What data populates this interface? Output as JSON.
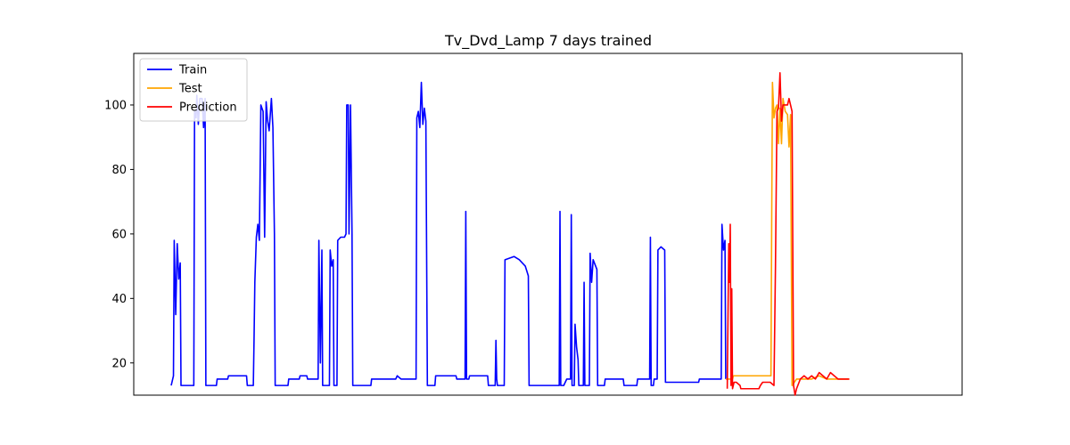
{
  "chart_data": {
    "type": "line",
    "title": "Tv_Dvd_Lamp 7 days trained",
    "xlabel": "",
    "ylabel": "",
    "xlim": [
      0,
      1000
    ],
    "ylim": [
      10,
      116
    ],
    "yticks": [
      20,
      40,
      60,
      80,
      100
    ],
    "grid": false,
    "legend_position": "top-left",
    "series": [
      {
        "name": "Train",
        "color": "#0000ff",
        "points": [
          [
            0,
            13
          ],
          [
            3,
            16
          ],
          [
            4,
            58
          ],
          [
            6,
            35
          ],
          [
            8,
            57
          ],
          [
            10,
            46
          ],
          [
            12,
            51
          ],
          [
            13,
            13
          ],
          [
            30,
            13
          ],
          [
            31,
            98
          ],
          [
            33,
            96
          ],
          [
            34,
            103
          ],
          [
            36,
            94
          ],
          [
            38,
            102
          ],
          [
            41,
            102
          ],
          [
            43,
            93
          ],
          [
            45,
            102
          ],
          [
            46,
            13
          ],
          [
            60,
            13
          ],
          [
            61,
            15
          ],
          [
            75,
            15
          ],
          [
            76,
            16
          ],
          [
            100,
            16
          ],
          [
            101,
            13
          ],
          [
            109,
            13
          ],
          [
            110,
            28
          ],
          [
            111,
            45
          ],
          [
            113,
            59
          ],
          [
            115,
            63
          ],
          [
            117,
            58
          ],
          [
            119,
            100
          ],
          [
            122,
            98
          ],
          [
            124,
            59
          ],
          [
            126,
            101
          ],
          [
            128,
            95
          ],
          [
            130,
            92
          ],
          [
            133,
            102
          ],
          [
            135,
            93
          ],
          [
            137,
            60
          ],
          [
            138,
            13
          ],
          [
            155,
            13
          ],
          [
            156,
            15
          ],
          [
            170,
            15
          ],
          [
            171,
            16
          ],
          [
            180,
            16
          ],
          [
            181,
            15
          ],
          [
            195,
            15
          ],
          [
            196,
            58
          ],
          [
            198,
            20
          ],
          [
            200,
            55
          ],
          [
            201,
            13
          ],
          [
            210,
            13
          ],
          [
            211,
            55
          ],
          [
            213,
            50
          ],
          [
            215,
            52
          ],
          [
            216,
            13
          ],
          [
            220,
            13
          ],
          [
            221,
            58
          ],
          [
            225,
            59
          ],
          [
            230,
            59
          ],
          [
            232,
            60
          ],
          [
            233,
            100
          ],
          [
            235,
            100
          ],
          [
            236,
            60
          ],
          [
            238,
            100
          ],
          [
            240,
            60
          ],
          [
            241,
            13
          ],
          [
            265,
            13
          ],
          [
            266,
            15
          ],
          [
            298,
            15
          ],
          [
            300,
            16
          ],
          [
            305,
            15
          ],
          [
            325,
            15
          ],
          [
            326,
            96
          ],
          [
            328,
            98
          ],
          [
            330,
            93
          ],
          [
            332,
            107
          ],
          [
            334,
            94
          ],
          [
            336,
            99
          ],
          [
            338,
            95
          ],
          [
            340,
            13
          ],
          [
            350,
            13
          ],
          [
            351,
            16
          ],
          [
            378,
            16
          ],
          [
            379,
            15
          ],
          [
            390,
            15
          ],
          [
            391,
            67
          ],
          [
            392,
            15
          ],
          [
            395,
            15
          ],
          [
            396,
            16
          ],
          [
            420,
            16
          ],
          [
            421,
            13
          ],
          [
            430,
            13
          ],
          [
            431,
            27
          ],
          [
            432,
            15
          ],
          [
            433,
            13
          ],
          [
            442,
            13
          ],
          [
            443,
            52
          ],
          [
            455,
            53
          ],
          [
            462,
            52
          ],
          [
            470,
            50
          ],
          [
            474,
            47
          ],
          [
            475,
            13
          ],
          [
            500,
            13
          ],
          [
            510,
            13
          ],
          [
            511,
            13
          ],
          [
            515,
            13
          ],
          [
            516,
            67
          ],
          [
            517,
            13
          ],
          [
            520,
            13
          ],
          [
            521,
            13
          ],
          [
            525,
            15
          ],
          [
            530,
            15
          ],
          [
            531,
            66
          ],
          [
            532,
            13
          ],
          [
            535,
            13
          ],
          [
            536,
            32
          ],
          [
            538,
            25
          ],
          [
            540,
            21
          ],
          [
            541,
            13
          ],
          [
            547,
            13
          ],
          [
            548,
            45
          ],
          [
            549,
            13
          ],
          [
            555,
            13
          ],
          [
            556,
            54
          ],
          [
            558,
            45
          ],
          [
            560,
            52
          ],
          [
            565,
            49
          ],
          [
            566,
            13
          ],
          [
            575,
            13
          ],
          [
            576,
            15
          ],
          [
            600,
            15
          ],
          [
            601,
            13
          ],
          [
            618,
            13
          ],
          [
            619,
            15
          ],
          [
            635,
            15
          ],
          [
            636,
            59
          ],
          [
            637,
            13
          ],
          [
            640,
            13
          ],
          [
            641,
            15
          ],
          [
            645,
            15
          ],
          [
            646,
            55
          ],
          [
            650,
            56
          ],
          [
            655,
            55
          ],
          [
            656,
            14
          ],
          [
            660,
            14
          ],
          [
            661,
            14
          ],
          [
            700,
            14
          ],
          [
            701,
            15
          ],
          [
            725,
            15
          ],
          [
            730,
            15
          ],
          [
            731,
            63
          ],
          [
            733,
            55
          ],
          [
            735,
            58
          ],
          [
            736,
            15
          ]
        ]
      },
      {
        "name": "Test",
        "color": "#ffa500",
        "points": [
          [
            736,
            15
          ],
          [
            745,
            15
          ],
          [
            746,
            16
          ],
          [
            780,
            16
          ],
          [
            796,
            16
          ],
          [
            797,
            65
          ],
          [
            798,
            107
          ],
          [
            800,
            96
          ],
          [
            802,
            99
          ],
          [
            804,
            100
          ],
          [
            806,
            88
          ],
          [
            808,
            99
          ],
          [
            810,
            88
          ],
          [
            812,
            102
          ],
          [
            815,
            98
          ],
          [
            818,
            97
          ],
          [
            820,
            87
          ],
          [
            822,
            97
          ],
          [
            824,
            13
          ],
          [
            830,
            15
          ],
          [
            840,
            15
          ],
          [
            845,
            15
          ],
          [
            850,
            15
          ],
          [
            860,
            16
          ],
          [
            870,
            15
          ],
          [
            885,
            15
          ],
          [
            890,
            15
          ],
          [
            900,
            15
          ]
        ]
      },
      {
        "name": "Prediction",
        "color": "#ff0000",
        "points": [
          [
            738,
            12
          ],
          [
            740,
            57
          ],
          [
            741,
            45
          ],
          [
            742,
            63
          ],
          [
            743,
            13
          ],
          [
            744,
            43
          ],
          [
            745,
            12
          ],
          [
            747,
            14
          ],
          [
            750,
            14
          ],
          [
            755,
            13
          ],
          [
            756,
            12
          ],
          [
            780,
            12
          ],
          [
            782,
            13
          ],
          [
            785,
            14
          ],
          [
            790,
            14
          ],
          [
            795,
            14
          ],
          [
            800,
            13
          ],
          [
            802,
            50
          ],
          [
            804,
            98
          ],
          [
            806,
            99
          ],
          [
            808,
            110
          ],
          [
            810,
            95
          ],
          [
            812,
            100
          ],
          [
            815,
            100
          ],
          [
            818,
            100
          ],
          [
            820,
            102
          ],
          [
            822,
            100
          ],
          [
            824,
            98
          ],
          [
            826,
            13
          ],
          [
            828,
            10
          ],
          [
            830,
            12
          ],
          [
            835,
            15
          ],
          [
            840,
            16
          ],
          [
            845,
            15
          ],
          [
            850,
            16
          ],
          [
            855,
            15
          ],
          [
            860,
            17
          ],
          [
            865,
            16
          ],
          [
            870,
            15
          ],
          [
            875,
            17
          ],
          [
            880,
            16
          ],
          [
            885,
            15
          ],
          [
            890,
            15
          ],
          [
            895,
            15
          ],
          [
            900,
            15
          ]
        ]
      }
    ]
  }
}
